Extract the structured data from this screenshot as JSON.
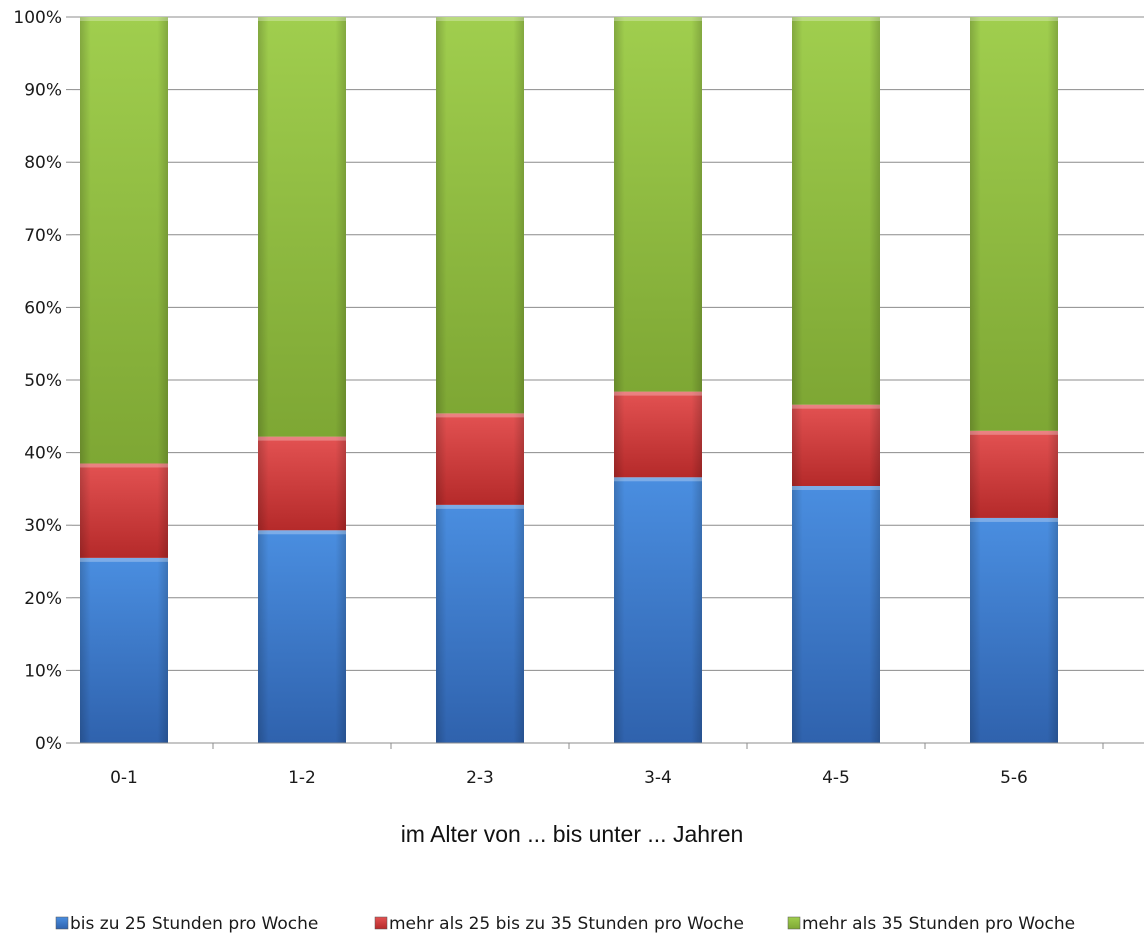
{
  "chart_data": {
    "type": "bar",
    "stacked": true,
    "percent": true,
    "categories": [
      "0-1",
      "1-2",
      "2-3",
      "3-4",
      "4-5",
      "5-6"
    ],
    "series": [
      {
        "name": "bis zu 25 Stunden pro Woche",
        "values": [
          25.5,
          29.3,
          32.8,
          36.6,
          35.4,
          31.0
        ],
        "color": "#3f7fd3"
      },
      {
        "name": "mehr als 25 bis zu 35 Stunden pro Woche",
        "values": [
          13.0,
          12.9,
          12.6,
          11.8,
          11.2,
          12.0
        ],
        "color": "#d94141"
      },
      {
        "name": "mehr als 35 Stunden pro Woche",
        "values": [
          61.5,
          57.8,
          54.6,
          51.6,
          53.4,
          57.0
        ],
        "color": "#8fbe3a"
      }
    ],
    "xlabel": "im Alter von ... bis unter ... Jahren",
    "ylabel": "",
    "ylim": [
      0,
      100
    ],
    "yticks": [
      "0%",
      "10%",
      "20%",
      "30%",
      "40%",
      "50%",
      "60%",
      "70%",
      "80%",
      "90%",
      "100%"
    ],
    "grid": true,
    "legend_position": "bottom"
  }
}
